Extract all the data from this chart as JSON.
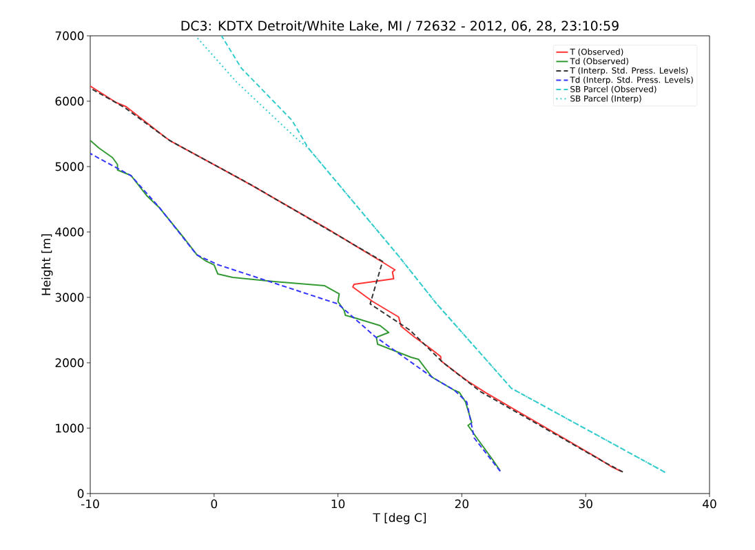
{
  "chart_data": {
    "type": "line",
    "title": "DC3: KDTX Detroit/White Lake, MI / 72632 - 2012, 06, 28, 23:10:59",
    "xlabel": "T [deg C]",
    "ylabel": "Height [m]",
    "xlim": [
      -10,
      40
    ],
    "xticks": [
      -10,
      0,
      10,
      20,
      30,
      40
    ],
    "ylim": [
      0,
      7000
    ],
    "yticks": [
      0,
      1000,
      2000,
      3000,
      4000,
      5000,
      6000,
      7000
    ],
    "grid": false,
    "legend": "top right",
    "series": [
      {
        "name": "T (Observed)",
        "color": "#ff3333",
        "line_style": "solid",
        "x": [
          32.9,
          32.1,
          31.2,
          21.9,
          20.5,
          19.6,
          18.3,
          18.3,
          17.3,
          16.2,
          15.1,
          14.9,
          12.8,
          11.2,
          11.3,
          14.5,
          14.4,
          14.6,
          13.5,
          9.1,
          3.0,
          0.6,
          -3.5,
          -3.9,
          -7.1,
          -7.9,
          -10.0
        ],
        "values": [
          337,
          410,
          516,
          1547,
          1716,
          1842,
          2032,
          2095,
          2242,
          2389,
          2558,
          2700,
          2937,
          3158,
          3200,
          3284,
          3389,
          3421,
          3550,
          4053,
          4716,
          4968,
          5389,
          5442,
          5916,
          5979,
          6230
        ]
      },
      {
        "name": "Td (Observed)",
        "color": "#339933",
        "line_style": "solid",
        "x": [
          23.1,
          22.5,
          21.2,
          20.5,
          20.8,
          20.3,
          19.8,
          19.4,
          17.6,
          16.5,
          15.9,
          13.2,
          13.1,
          14.1,
          13.4,
          11.4,
          10.6,
          10.5,
          10.0,
          10.1,
          8.9,
          4.85,
          1.5,
          0.3,
          0.0,
          -0.7,
          -1.4,
          -2.4,
          -4.4,
          -5.4,
          -6.7,
          -7.8,
          -7.8,
          -8.2,
          -9.3,
          -10.0
        ],
        "values": [
          347,
          516,
          853,
          1042,
          1084,
          1400,
          1547,
          1579,
          1779,
          2053,
          2084,
          2284,
          2389,
          2463,
          2568,
          2684,
          2726,
          2800,
          2937,
          3053,
          3179,
          3242,
          3305,
          3358,
          3495,
          3560,
          3653,
          3900,
          4368,
          4547,
          4863,
          4947,
          5032,
          5137,
          5284,
          5400
        ]
      },
      {
        "name": "T (Interp. Std. Press. Levels)",
        "color": "#333333",
        "line_style": "dashed",
        "x": [
          33.0,
          31.5,
          21.5,
          18.5,
          15.8,
          12.6,
          13.6,
          3.0,
          -3.6,
          -7.2,
          -10.0
        ],
        "values": [
          330,
          480,
          1560,
          2000,
          2500,
          2900,
          3550,
          4720,
          5400,
          5900,
          6200
        ]
      },
      {
        "name": "Td (Interp. Std. Press. Levels)",
        "color": "#3333ff",
        "line_style": "dashed",
        "x": [
          23.1,
          21.0,
          20.4,
          19.4,
          17.6,
          13.0,
          10.0,
          0.3,
          -1.4,
          -4.4,
          -6.7,
          -10.0
        ],
        "values": [
          340,
          850,
          1400,
          1580,
          1780,
          2400,
          2900,
          3500,
          3650,
          4370,
          4860,
          5200
        ]
      },
      {
        "name": "SB Parcel (Observed)",
        "color": "#33cccc",
        "line_style": "dashed",
        "x": [
          36.4,
          24.0,
          17.9,
          14.9,
          7.6,
          6.3,
          2.2,
          0.6
        ],
        "values": [
          326,
          1610,
          2916,
          3632,
          5284,
          5705,
          6505,
          7000
        ]
      },
      {
        "name": "SB Parcel (Interp)",
        "color": "#33cccc",
        "line_style": "dotted",
        "x": [
          36.4,
          24.0,
          17.9,
          14.9,
          7.6,
          6.7,
          1.8,
          -1.5
        ],
        "values": [
          326,
          1610,
          2916,
          3632,
          5284,
          5421,
          6295,
          7000
        ]
      }
    ]
  }
}
